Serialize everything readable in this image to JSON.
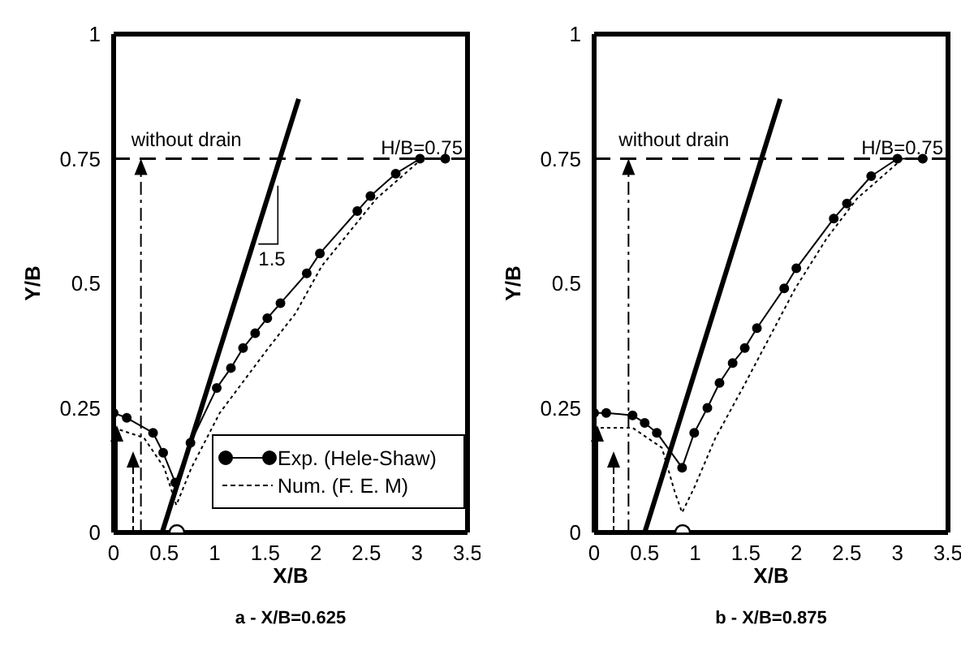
{
  "chart_data": [
    {
      "type": "line",
      "title": "a - X/B=0.625",
      "xlabel": "X/B",
      "ylabel": "Y/B",
      "xlim": [
        0,
        3.5
      ],
      "xticks": [
        0,
        0.5,
        1,
        1.5,
        2,
        2.5,
        3,
        3.5
      ],
      "ylim": [
        0,
        1
      ],
      "yticks": [
        0,
        0.25,
        0.5,
        0.75,
        1
      ],
      "legend": "bottom right",
      "series": [
        {
          "name": "Exp. (Hele-Shaw)",
          "color": "#000000",
          "marker": "circle",
          "line_style": "solid",
          "x": [
            0,
            0.13,
            0.39,
            0.49,
            0.61,
            0.76,
            1.02,
            1.16,
            1.28,
            1.4,
            1.52,
            1.65,
            1.91,
            2.04,
            2.41,
            2.54,
            2.79,
            3.03,
            3.28
          ],
          "values": [
            0.24,
            0.23,
            0.2,
            0.16,
            0.1,
            0.18,
            0.29,
            0.33,
            0.37,
            0.4,
            0.43,
            0.46,
            0.52,
            0.56,
            0.645,
            0.675,
            0.72,
            0.75,
            0.75
          ]
        },
        {
          "name": "Num. (F. E. M)",
          "color": "#000000",
          "marker": "none",
          "line_style": "dotted",
          "x": [
            0,
            0.3,
            0.5,
            0.62,
            0.77,
            1.05,
            1.53,
            1.8,
            2.06,
            2.6,
            3.05,
            3.3
          ],
          "values": [
            0.21,
            0.19,
            0.13,
            0.055,
            0.13,
            0.24,
            0.37,
            0.44,
            0.535,
            0.67,
            0.75,
            0.75
          ]
        },
        {
          "type": "line",
          "color": "#000000",
          "marker": "none",
          "line_style": "solid",
          "x": [
            0.48,
            1.83
          ],
          "values": [
            0,
            0.87
          ]
        },
        {
          "type": "scatter",
          "color": "#000000",
          "marker": "circle",
          "x": [
            0.625
          ],
          "values": [
            0
          ]
        }
      ],
      "ref_lines": [
        {
          "axis": "y",
          "value": 0.75,
          "label": "H/B=0.75",
          "line_style": "dashed"
        }
      ],
      "annotations": [
        {
          "text": "without drain",
          "x": 0.27,
          "y": 0.75
        },
        "1.5"
      ]
    },
    {
      "type": "line",
      "title": "b - X/B=0.875",
      "xlabel": "X/B",
      "ylabel": "Y/B",
      "xlim": [
        0,
        3.5
      ],
      "xticks": [
        0,
        0.5,
        1,
        1.5,
        2,
        2.5,
        3,
        3.5
      ],
      "ylim": [
        0,
        1
      ],
      "yticks": [
        0,
        0.25,
        0.5,
        0.75,
        1
      ],
      "series": [
        {
          "color": "#000000",
          "marker": "circle",
          "line_style": "solid",
          "x": [
            0,
            0.12,
            0.38,
            0.5,
            0.62,
            0.87,
            0.99,
            1.12,
            1.24,
            1.37,
            1.49,
            1.61,
            1.88,
            2.0,
            2.37,
            2.5,
            2.74,
            3.0,
            3.25
          ],
          "values": [
            0.24,
            0.24,
            0.235,
            0.22,
            0.2,
            0.13,
            0.2,
            0.25,
            0.3,
            0.34,
            0.37,
            0.41,
            0.49,
            0.53,
            0.63,
            0.66,
            0.715,
            0.75,
            0.75
          ]
        },
        {
          "color": "#000000",
          "marker": "none",
          "line_style": "dotted",
          "x": [
            0,
            0.38,
            0.67,
            0.8,
            0.87,
            0.99,
            1.2,
            1.47,
            1.99,
            2.3,
            2.6,
            3.05,
            3.3
          ],
          "values": [
            0.21,
            0.21,
            0.17,
            0.08,
            0.04,
            0.09,
            0.19,
            0.29,
            0.49,
            0.59,
            0.67,
            0.75,
            0.75
          ]
        },
        {
          "type": "line",
          "color": "#000000",
          "marker": "none",
          "line_style": "solid",
          "x": [
            0.5,
            1.84
          ],
          "values": [
            0,
            0.87
          ]
        },
        {
          "type": "scatter",
          "color": "#000000",
          "marker": "circle",
          "x": [
            0.875
          ],
          "values": [
            0
          ]
        }
      ],
      "ref_lines": [
        {
          "axis": "y",
          "value": 0.75,
          "label": "H/B=0.75",
          "line_style": "dashed"
        }
      ],
      "annotations": [
        {
          "text": "without drain",
          "x": 0.34,
          "y": 0.75
        }
      ]
    }
  ]
}
